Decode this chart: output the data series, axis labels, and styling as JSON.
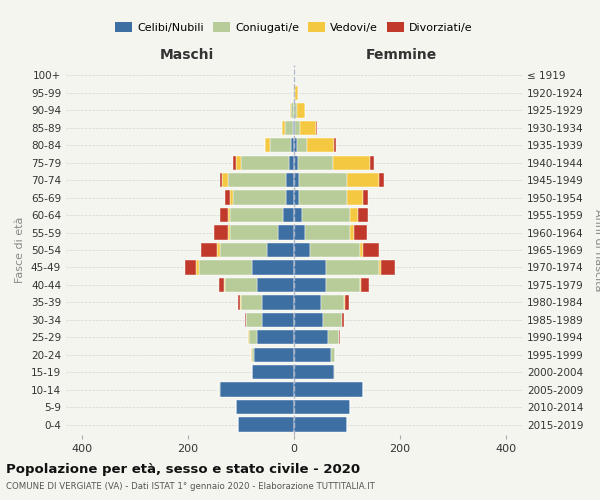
{
  "age_groups": [
    "0-4",
    "5-9",
    "10-14",
    "15-19",
    "20-24",
    "25-29",
    "30-34",
    "35-39",
    "40-44",
    "45-49",
    "50-54",
    "55-59",
    "60-64",
    "65-69",
    "70-74",
    "75-79",
    "80-84",
    "85-89",
    "90-94",
    "95-99",
    "100+"
  ],
  "birth_years": [
    "2015-2019",
    "2010-2014",
    "2005-2009",
    "2000-2004",
    "1995-1999",
    "1990-1994",
    "1985-1989",
    "1980-1984",
    "1975-1979",
    "1970-1974",
    "1965-1969",
    "1960-1964",
    "1955-1959",
    "1950-1954",
    "1945-1949",
    "1940-1944",
    "1935-1939",
    "1930-1934",
    "1925-1929",
    "1920-1924",
    "≤ 1919"
  ],
  "maschi": {
    "celibi": [
      105,
      110,
      140,
      80,
      75,
      70,
      60,
      60,
      70,
      80,
      50,
      30,
      20,
      15,
      15,
      10,
      5,
      2,
      0,
      0,
      0
    ],
    "coniugati": [
      0,
      0,
      2,
      0,
      5,
      15,
      30,
      40,
      60,
      100,
      90,
      90,
      100,
      100,
      110,
      90,
      40,
      15,
      5,
      1,
      0
    ],
    "vedovi": [
      0,
      0,
      0,
      0,
      1,
      1,
      1,
      1,
      2,
      5,
      5,
      5,
      5,
      5,
      10,
      10,
      10,
      5,
      3,
      1,
      0
    ],
    "divorziati": [
      0,
      0,
      0,
      0,
      0,
      0,
      1,
      5,
      10,
      20,
      30,
      25,
      15,
      10,
      5,
      5,
      0,
      0,
      0,
      0,
      0
    ]
  },
  "femmine": {
    "nubili": [
      100,
      105,
      130,
      75,
      70,
      65,
      55,
      50,
      60,
      60,
      30,
      20,
      15,
      10,
      10,
      8,
      5,
      2,
      0,
      0,
      0
    ],
    "coniugate": [
      0,
      0,
      1,
      2,
      8,
      20,
      35,
      45,
      65,
      100,
      95,
      85,
      90,
      90,
      90,
      65,
      20,
      10,
      5,
      2,
      1
    ],
    "vedove": [
      0,
      0,
      0,
      0,
      0,
      0,
      0,
      1,
      2,
      5,
      5,
      8,
      15,
      30,
      60,
      70,
      50,
      30,
      15,
      5,
      1
    ],
    "divorziate": [
      0,
      0,
      0,
      0,
      0,
      2,
      5,
      8,
      15,
      25,
      30,
      25,
      20,
      10,
      10,
      8,
      5,
      2,
      0,
      0,
      0
    ]
  },
  "colors": {
    "celibi": "#3d6fa3",
    "coniugati": "#b8cc9a",
    "vedovi": "#f5c842",
    "divorziati": "#c0392b"
  },
  "xlim": 430,
  "title": "Popolazione per età, sesso e stato civile - 2020",
  "subtitle": "COMUNE DI VERGIATE (VA) - Dati ISTAT 1° gennaio 2020 - Elaborazione TUTTITALIA.IT",
  "ylabel_left": "Fasce di età",
  "ylabel_right": "Anni di nascita",
  "xlabel_left": "Maschi",
  "xlabel_right": "Femmine",
  "bg_color": "#f5f5f0"
}
